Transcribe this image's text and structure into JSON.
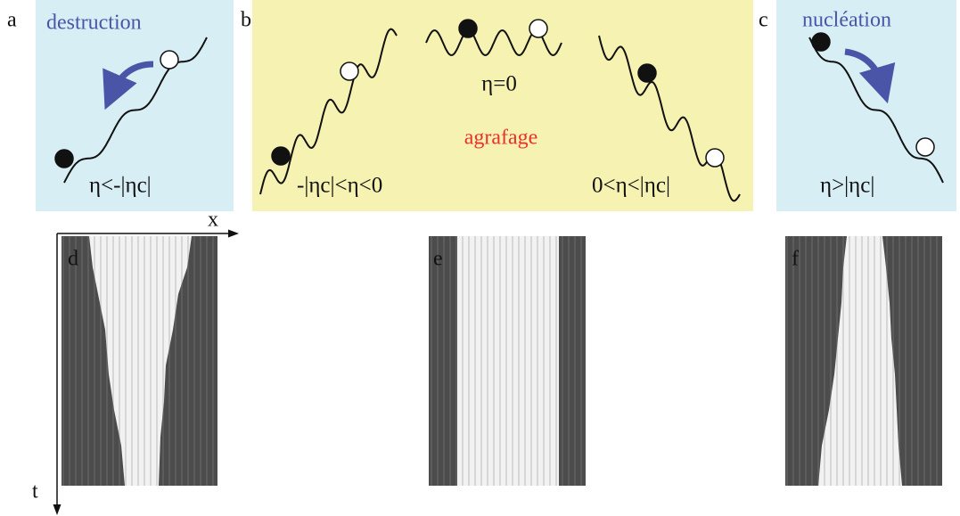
{
  "panels": [
    {
      "label": "a",
      "title": "destruction",
      "condition": "η<-|ηc|"
    },
    {
      "label": "b",
      "title": "agrafage",
      "conditions": [
        "-|ηc|<η<0",
        "η=0",
        "0<η<|ηc|"
      ]
    },
    {
      "label": "c",
      "title": "nucléation",
      "condition": "η>|ηc|"
    }
  ],
  "kymographs": [
    {
      "label": "d"
    },
    {
      "label": "e"
    },
    {
      "label": "f"
    }
  ],
  "axes": {
    "x": "x",
    "t": "t"
  }
}
